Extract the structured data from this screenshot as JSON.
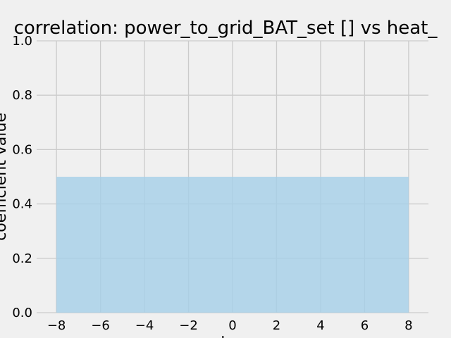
{
  "chart_data": {
    "type": "area",
    "title": "correlation: power_to_grid_BAT_set [] vs heat_",
    "xlabel": "lag",
    "ylabel": "coefficient value",
    "xlim": [
      -8.9,
      8.9
    ],
    "ylim": [
      0,
      1
    ],
    "x_ticks": [
      -8,
      -6,
      -4,
      -2,
      0,
      2,
      4,
      6,
      8
    ],
    "x_tick_labels": [
      "−8",
      "−6",
      "−4",
      "−2",
      "0",
      "2",
      "4",
      "6",
      "8"
    ],
    "y_ticks": [
      0.0,
      0.2,
      0.4,
      0.6,
      0.8,
      1.0
    ],
    "y_tick_labels": [
      "0.0",
      "0.2",
      "0.4",
      "0.6",
      "0.8",
      "1.0"
    ],
    "grid": true,
    "series": [
      {
        "x": [
          -8,
          8
        ],
        "y_lower": [
          0,
          0
        ],
        "y_upper": [
          0.5,
          0.5
        ],
        "color": "#a6d0e8"
      }
    ],
    "background_color": "#f0f0f0",
    "grid_color": "#cbcbcb"
  }
}
